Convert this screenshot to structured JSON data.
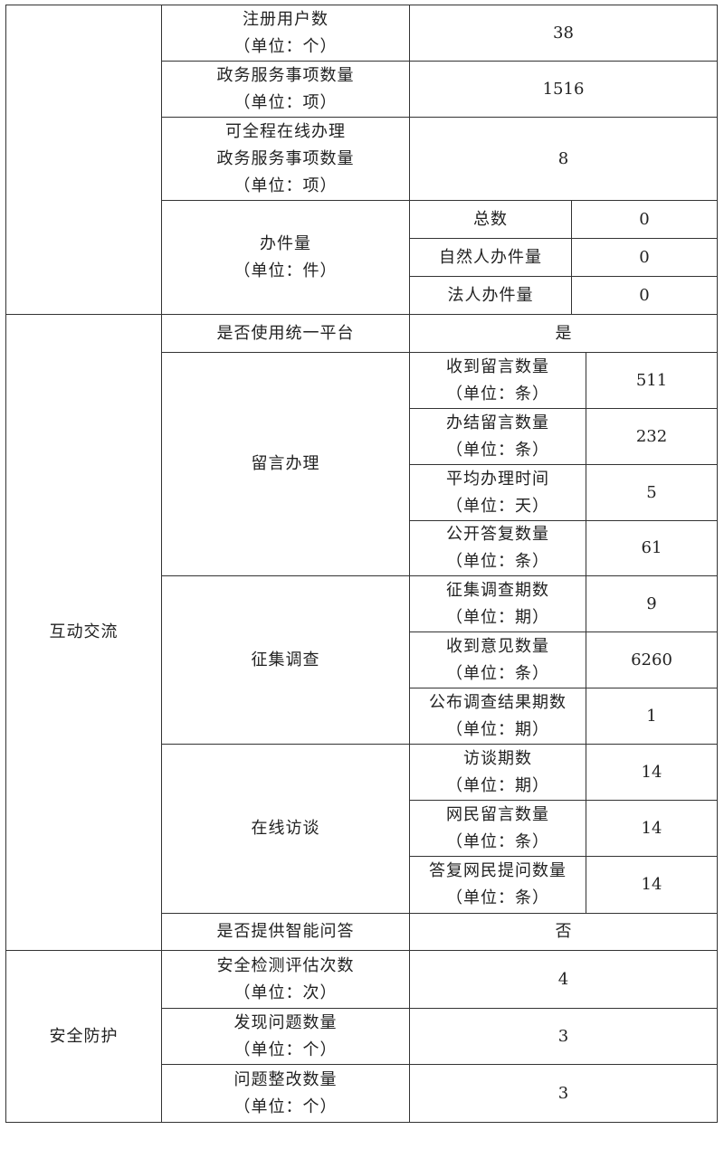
{
  "basic": [
    {
      "label": "注册用户数\n（单位：个）",
      "value": "38"
    },
    {
      "label": "政务服务事项数量\n（单位：项）",
      "value": "1516"
    },
    {
      "label": "可全程在线办理\n政务服务事项数量\n（单位：项）",
      "value": "8"
    }
  ],
  "handling": {
    "label": "办件量\n（单位：件）",
    "items": [
      {
        "label": "总数",
        "value": "0"
      },
      {
        "label": "自然人办件量",
        "value": "0"
      },
      {
        "label": "法人办件量",
        "value": "0"
      }
    ]
  },
  "interaction": {
    "label": "互动交流",
    "unified_platform": {
      "label": "是否使用统一平台",
      "value": "是"
    },
    "groups": [
      {
        "label": "留言办理",
        "items": [
          {
            "label": "收到留言数量\n（单位：条）",
            "value": "511"
          },
          {
            "label": "办结留言数量\n（单位：条）",
            "value": "232"
          },
          {
            "label": "平均办理时间\n（单位：天）",
            "value": "5"
          },
          {
            "label": "公开答复数量\n（单位：条）",
            "value": "61"
          }
        ]
      },
      {
        "label": "征集调查",
        "items": [
          {
            "label": "征集调查期数\n（单位：期）",
            "value": "9"
          },
          {
            "label": "收到意见数量\n（单位：条）",
            "value": "6260"
          },
          {
            "label": "公布调查结果期数\n（单位：期）",
            "value": "1"
          }
        ]
      },
      {
        "label": "在线访谈",
        "items": [
          {
            "label": "访谈期数\n（单位：期）",
            "value": "14"
          },
          {
            "label": "网民留言数量\n（单位：条）",
            "value": "14"
          },
          {
            "label": "答复网民提问数量\n（单位：条）",
            "value": "14"
          }
        ]
      }
    ],
    "smart_qa": {
      "label": "是否提供智能问答",
      "value": "否"
    }
  },
  "security": {
    "label": "安全防护",
    "items": [
      {
        "label": "安全检测评估次数\n（单位：次）",
        "value": "4"
      },
      {
        "label": "发现问题数量\n（单位：个）",
        "value": "3"
      },
      {
        "label": "问题整改数量\n（单位：个）",
        "value": "3"
      }
    ]
  }
}
